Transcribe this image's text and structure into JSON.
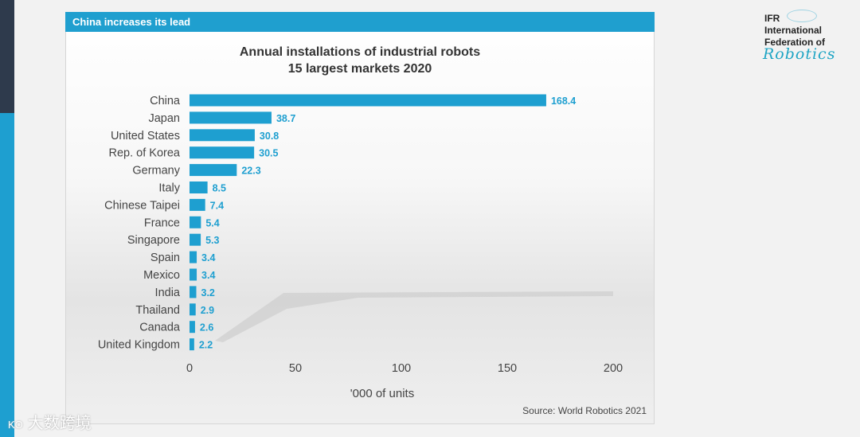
{
  "banner": "China increases its lead",
  "logo": {
    "line1": "IFR",
    "line2": "International",
    "line3": "Federation of",
    "line4": "Robotics"
  },
  "watermark": {
    "icon": "KO",
    "text": "大数跨境"
  },
  "source": "Source: World Robotics 2021",
  "colors": {
    "bar": "#1e9fd0",
    "banner": "#1f9fcf",
    "label": "#1e9fd0"
  },
  "chart_data": {
    "type": "bar",
    "orientation": "horizontal",
    "title": "Annual installations of industrial robots",
    "subtitle": "15 largest markets 2020",
    "xlabel": "'000 of units",
    "ylabel": "",
    "xlim": [
      0,
      200
    ],
    "xticks": [
      0,
      50,
      100,
      150,
      200
    ],
    "categories": [
      "China",
      "Japan",
      "United States",
      "Rep. of Korea",
      "Germany",
      "Italy",
      "Chinese Taipei",
      "France",
      "Singapore",
      "Spain",
      "Mexico",
      "India",
      "Thailand",
      "Canada",
      "United Kingdom"
    ],
    "values": [
      168.4,
      38.7,
      30.8,
      30.5,
      22.3,
      8.5,
      7.4,
      5.4,
      5.3,
      3.4,
      3.4,
      3.2,
      2.9,
      2.6,
      2.2
    ],
    "value_labels": [
      "168.4",
      "38.7",
      "30.8",
      "30.5",
      "22.3",
      "8.5",
      "7.4",
      "5.4",
      "5.3",
      "3.4",
      "3.4",
      "3.2",
      "2.9",
      "2.6",
      "2.2"
    ],
    "grid": false
  }
}
